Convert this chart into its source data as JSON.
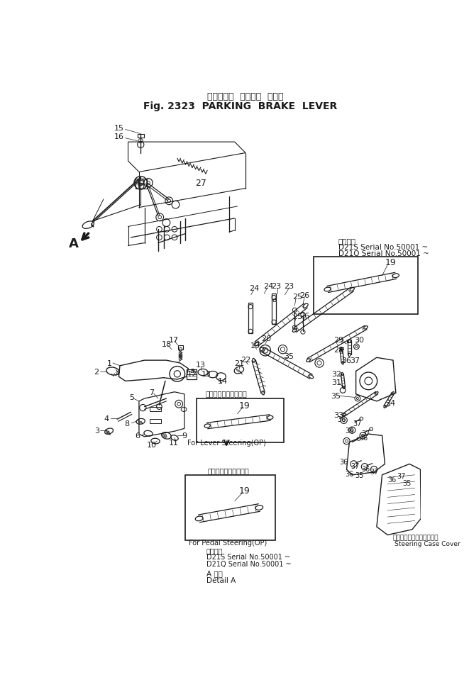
{
  "title_jp": "パーキング  ブレーキ  レバー",
  "title_en": "Fig. 2323  PARKING  BRAKE  LEVER",
  "bg_color": "#ffffff",
  "line_color": "#1a1a1a",
  "fig_width": 6.61,
  "fig_height": 9.7,
  "dpi": 100,
  "callout1_serial1": "D21S Serial No.50001 ~",
  "callout1_serial2": "D21Q Serial No.50001 ~",
  "callout2_jp": "レバーステアリング用",
  "callout2_en": "For Lever Steering(OP)",
  "callout3_jp": "ペダルステアリング用",
  "callout3_en": "For Pedal Steering(OP)",
  "bottom_serial1": "D21S Serial No.50001 ~",
  "bottom_serial2": "D21Q Serial No.50001 ~",
  "bottom_jp": "適用号機",
  "bottom_detail_jp": "A 詳細",
  "bottom_detail_en": "Detail A",
  "callout1_title_jp": "適用号機",
  "steering_jp": "ステアリングケースカバー",
  "steering_en": "Steering Case Cover"
}
